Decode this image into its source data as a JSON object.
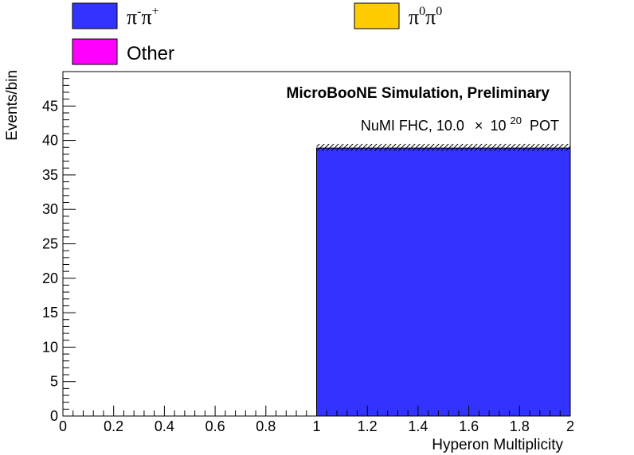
{
  "chart_data": {
    "type": "bar",
    "title": "MicroBooNE Simulation, Preliminary",
    "annotation": {
      "prefix": "NuMI FHC, 10.0",
      "times": "×",
      "base": "10",
      "exponent": "20",
      "suffix": "POT"
    },
    "xlabel": "Hyperon Multiplicity",
    "ylabel": "Events/bin",
    "xlim": [
      0,
      2
    ],
    "ylim": [
      0,
      50
    ],
    "x_ticks": [
      "0",
      "0.2",
      "0.4",
      "0.6",
      "0.8",
      "1",
      "1.2",
      "1.4",
      "1.6",
      "1.8",
      "2"
    ],
    "y_ticks": [
      "0",
      "5",
      "10",
      "15",
      "20",
      "25",
      "30",
      "35",
      "40",
      "45"
    ],
    "bins": [
      {
        "low": 0,
        "high": 1,
        "values": {
          "pipi": 0,
          "pi0pi0": 0,
          "other": 0
        }
      },
      {
        "low": 1,
        "high": 2,
        "values": {
          "pipi": 38.9,
          "pi0pi0": 0,
          "other": 0
        }
      }
    ],
    "uncertainty_band": [
      {
        "low": 1,
        "high": 2,
        "lower": 38.5,
        "upper": 39.5
      }
    ],
    "series": [
      {
        "key": "pipi",
        "base": "π",
        "sup1": "-",
        "base2": "π",
        "sup2": "+",
        "color": "#3333ff"
      },
      {
        "key": "pi0pi0",
        "base": "π",
        "sup1": "0",
        "base2": "π",
        "sup2": "0",
        "color": "#ffcc00"
      },
      {
        "key": "other",
        "base": "Other",
        "sup1": "",
        "base2": "",
        "sup2": "",
        "color": "#ff00ff"
      }
    ],
    "legend_position": "top",
    "grid": false
  }
}
